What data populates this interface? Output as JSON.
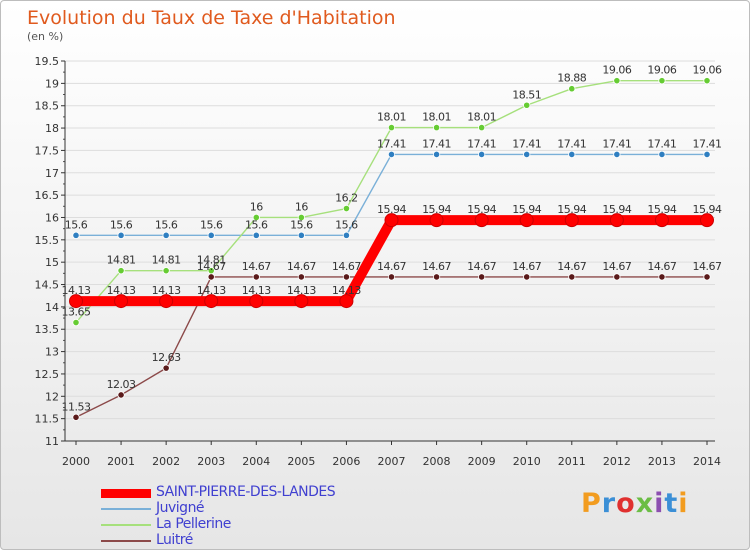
{
  "title": "Evolution du Taux de Taxe d'Habitation",
  "subtitle": "(en %)",
  "brand": {
    "text": "Proxiti",
    "colors": [
      "#f29c1f",
      "#3b8fd6",
      "#e0302f",
      "#6bbd45",
      "#8c4fb0",
      "#3b8fd6",
      "#f29c1f"
    ]
  },
  "chart_data": {
    "type": "line",
    "title": "Evolution du Taux de Taxe d'Habitation",
    "ylabel": "(en %)",
    "xlabel": "",
    "x": [
      2000,
      2001,
      2002,
      2003,
      2004,
      2005,
      2006,
      2007,
      2008,
      2009,
      2010,
      2011,
      2012,
      2013,
      2014
    ],
    "x_tick_labels": [
      "2000",
      "2001",
      "2002",
      "2003",
      "2004",
      "2005",
      "2006",
      "2007",
      "2008",
      "2009",
      "2010",
      "2011",
      "2012",
      "2013",
      "2014"
    ],
    "ylim": [
      11,
      19.5
    ],
    "y_ticks": [
      "11",
      "11.5",
      "12",
      "12.5",
      "13",
      "13.5",
      "14",
      "14.5",
      "15",
      "15.5",
      "16",
      "16.5",
      "17",
      "17.5",
      "18",
      "18.5",
      "19",
      "19.5"
    ],
    "legend_position": "bottom-left",
    "series": [
      {
        "name": "SAINT-PIERRE-DES-LANDES",
        "color": "#ff0000",
        "highlight": true,
        "values": [
          14.13,
          14.13,
          14.13,
          14.13,
          14.13,
          14.13,
          14.13,
          15.94,
          15.94,
          15.94,
          15.94,
          15.94,
          15.94,
          15.94,
          15.94
        ],
        "labels": [
          "14.13",
          "14.13",
          "14.13",
          "14.13",
          "14.13",
          "14.13",
          "14.13",
          "15.94",
          "15.94",
          "15.94",
          "15.94",
          "15.94",
          "15.94",
          "15.94",
          "15.94"
        ]
      },
      {
        "name": "Juvigné",
        "color": "#2f7fc1",
        "line_color": "#7ab0d8",
        "values": [
          15.6,
          15.6,
          15.6,
          15.6,
          15.6,
          15.6,
          15.6,
          17.41,
          17.41,
          17.41,
          17.41,
          17.41,
          17.41,
          17.41,
          17.41
        ],
        "labels": [
          "15.6",
          "15.6",
          "15.6",
          "15.6",
          "15.6",
          "15.6",
          "15.6",
          "17.41",
          "17.41",
          "17.41",
          "17.41",
          "17.41",
          "17.41",
          "17.41",
          "17.41"
        ]
      },
      {
        "name": "La Pellerine",
        "color": "#66cc33",
        "line_color": "#a6e07c",
        "values": [
          13.65,
          14.81,
          14.81,
          14.81,
          16,
          16,
          16.2,
          18.01,
          18.01,
          18.01,
          18.51,
          18.88,
          19.06,
          19.06,
          19.06
        ],
        "labels": [
          "13.65",
          "14.81",
          "14.81",
          "14.81",
          "16",
          "16",
          "16.2",
          "18.01",
          "18.01",
          "18.01",
          "18.51",
          "18.88",
          "19.06",
          "19.06",
          "19.06"
        ]
      },
      {
        "name": "Luitré",
        "color": "#5a1a1a",
        "line_color": "#8c4a4a",
        "values": [
          11.53,
          12.03,
          12.63,
          14.67,
          14.67,
          14.67,
          14.67,
          14.67,
          14.67,
          14.67,
          14.67,
          14.67,
          14.67,
          14.67,
          14.67
        ],
        "labels": [
          "11.53",
          "12.03",
          "12.63",
          "14.67",
          "14.67",
          "14.67",
          "14.67",
          "14.67",
          "14.67",
          "14.67",
          "14.67",
          "14.67",
          "14.67",
          "14.67",
          "14.67"
        ]
      }
    ]
  }
}
